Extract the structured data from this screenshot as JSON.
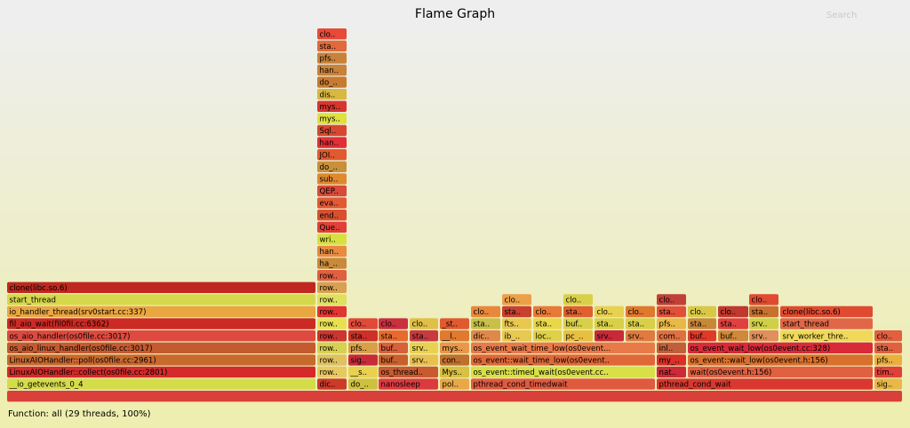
{
  "title": "Flame Graph",
  "search_label": "Search",
  "details": "Function: all (29 threads, 100%)",
  "background": {
    "top": "#eeeeee",
    "bottom": "#eeeeb0"
  },
  "frames": [
    {
      "label": "",
      "level": 0,
      "color": "#d9403a"
    },
    {
      "label": "__io_getevents_0_4",
      "level": 1,
      "color": "#d4dc4a"
    },
    {
      "label": "LinuxAIOHandler::collect(os0file.cc:2801)",
      "level": 2,
      "color": "#d42a2a"
    },
    {
      "label": "LinuxAIOHandler::poll(os0file.cc:2961)",
      "level": 3,
      "color": "#c8692e"
    },
    {
      "label": "os_aio_linux_handler(os0file.cc:3017)",
      "level": 4,
      "color": "#c45a30"
    },
    {
      "label": "os_aio_handler(os0file.cc:3017)",
      "level": 5,
      "color": "#de4a40"
    },
    {
      "label": "fil_aio_wait(fil0fil.cc:6362)",
      "level": 6,
      "color": "#cc2a24"
    },
    {
      "label": "io_handler_thread(srv0start.cc:337)",
      "level": 7,
      "color": "#eaa640"
    },
    {
      "label": "start_thread",
      "level": 8,
      "color": "#d6d84c"
    },
    {
      "label": "clone(libc.so.6)",
      "level": 9,
      "color": "#c0281f"
    },
    {
      "label": "dic..",
      "level": 1,
      "color": "#cc3a2a"
    },
    {
      "label": "row..",
      "level": 2,
      "color": "#e8c860"
    },
    {
      "label": "row..",
      "level": 3,
      "color": "#e0c060"
    },
    {
      "label": "row..",
      "level": 4,
      "color": "#d8d050"
    },
    {
      "label": "row..",
      "level": 5,
      "color": "#cc3530"
    },
    {
      "label": "row..",
      "level": 6,
      "color": "#e8e050"
    },
    {
      "label": "row..",
      "level": 7,
      "color": "#e03530"
    },
    {
      "label": "row..",
      "level": 8,
      "color": "#e0e060"
    },
    {
      "label": "row..",
      "level": 9,
      "color": "#d8a050"
    },
    {
      "label": "row..",
      "level": 10,
      "color": "#e06040"
    },
    {
      "label": "ha_..",
      "level": 11,
      "color": "#c88a3a"
    },
    {
      "label": "han..",
      "level": 12,
      "color": "#e88a40"
    },
    {
      "label": "wri..",
      "level": 13,
      "color": "#d8e040"
    },
    {
      "label": "Que..",
      "level": 14,
      "color": "#e04038"
    },
    {
      "label": "end..",
      "level": 15,
      "color": "#d8502e"
    },
    {
      "label": "eva..",
      "level": 16,
      "color": "#e05a35"
    },
    {
      "label": "QEP..",
      "level": 17,
      "color": "#d84a3a"
    },
    {
      "label": "sub..",
      "level": 18,
      "color": "#e0882e"
    },
    {
      "label": "do_..",
      "level": 19,
      "color": "#c8903a"
    },
    {
      "label": "JOI..",
      "level": 20,
      "color": "#e05a30"
    },
    {
      "label": "han..",
      "level": 21,
      "color": "#e03038"
    },
    {
      "label": "Sql..",
      "level": 22,
      "color": "#d84830"
    },
    {
      "label": "mys..",
      "level": 23,
      "color": "#e0e040"
    },
    {
      "label": "mys..",
      "level": 24,
      "color": "#d83530"
    },
    {
      "label": "dis..",
      "level": 25,
      "color": "#d8b840"
    },
    {
      "label": "do_..",
      "level": 26,
      "color": "#c87a30"
    },
    {
      "label": "han..",
      "level": 27,
      "color": "#c8823a"
    },
    {
      "label": "pfs..",
      "level": 28,
      "color": "#c8823a"
    },
    {
      "label": "sta..",
      "level": 29,
      "color": "#e06a3a"
    },
    {
      "label": "clo..",
      "level": 30,
      "color": "#e84a38"
    },
    {
      "label": "do_..",
      "level": 1,
      "color": "#d0c040"
    },
    {
      "label": "__s..",
      "level": 2,
      "color": "#e8d050"
    },
    {
      "label": "sig..",
      "level": 3,
      "color": "#c82a3a"
    },
    {
      "label": "pfs..",
      "level": 4,
      "color": "#d8a048"
    },
    {
      "label": "sta..",
      "level": 5,
      "color": "#cc3028"
    },
    {
      "label": "clo..",
      "level": 6,
      "color": "#e04a38"
    },
    {
      "label": "nanosleep",
      "level": 1,
      "color": "#dc3a40"
    },
    {
      "label": "os_thread..",
      "level": 2,
      "color": "#c85a30"
    },
    {
      "label": "buf..",
      "level": 3,
      "color": "#c8602e"
    },
    {
      "label": "buf..",
      "level": 4,
      "color": "#d8603a"
    },
    {
      "label": "sta..",
      "level": 5,
      "color": "#e86a30"
    },
    {
      "label": "clo..",
      "level": 6,
      "color": "#c83040"
    },
    {
      "label": "srv..",
      "level": 3,
      "color": "#e8c050"
    },
    {
      "label": "srv..",
      "level": 4,
      "color": "#e8d050"
    },
    {
      "label": "sta..",
      "level": 5,
      "color": "#c83a40"
    },
    {
      "label": "clo..",
      "level": 6,
      "color": "#e0c048"
    },
    {
      "label": "pol..",
      "level": 1,
      "color": "#e8a848"
    },
    {
      "label": "Mys..",
      "level": 2,
      "color": "#d8c040"
    },
    {
      "label": "con..",
      "level": 3,
      "color": "#c0702e"
    },
    {
      "label": "mys..",
      "level": 4,
      "color": "#e89848"
    },
    {
      "label": "__l..",
      "level": 5,
      "color": "#e07a30"
    },
    {
      "label": "_st..",
      "level": 6,
      "color": "#e05a30"
    },
    {
      "label": "pthread_cond_timedwait",
      "level": 1,
      "color": "#e05a40"
    },
    {
      "label": "os_event::timed_wait(os0event.cc..",
      "level": 2,
      "color": "#d8e048"
    },
    {
      "label": "os_event::wait_time_low(os0event..",
      "level": 3,
      "color": "#e06838"
    },
    {
      "label": "os_event_wait_time_low(os0event...",
      "level": 4,
      "color": "#e87a48"
    },
    {
      "label": "dic..",
      "level": 5,
      "color": "#e0884a"
    },
    {
      "label": "sta..",
      "level": 6,
      "color": "#c8c048"
    },
    {
      "label": "clo..",
      "level": 7,
      "color": "#e8883a"
    },
    {
      "label": "ib_..",
      "level": 5,
      "color": "#e8c850"
    },
    {
      "label": "fts..",
      "level": 6,
      "color": "#e8c850"
    },
    {
      "label": "sta..",
      "level": 7,
      "color": "#c8402e"
    },
    {
      "label": "clo..",
      "level": 8,
      "color": "#eca048"
    },
    {
      "label": "loc..",
      "level": 5,
      "color": "#e0d048"
    },
    {
      "label": "sta..",
      "level": 6,
      "color": "#e8d848"
    },
    {
      "label": "clo..",
      "level": 7,
      "color": "#e87a38"
    },
    {
      "label": "pc_..",
      "level": 5,
      "color": "#e8c040"
    },
    {
      "label": "buf..",
      "level": 6,
      "color": "#d8d048"
    },
    {
      "label": "sta..",
      "level": 7,
      "color": "#e0602e"
    },
    {
      "label": "clo..",
      "level": 8,
      "color": "#d8d048"
    },
    {
      "label": "srv..",
      "level": 5,
      "color": "#c82a38"
    },
    {
      "label": "sta..",
      "level": 6,
      "color": "#d8d048"
    },
    {
      "label": "clo..",
      "level": 7,
      "color": "#e8d050"
    },
    {
      "label": "srv..",
      "level": 5,
      "color": "#e07a40"
    },
    {
      "label": "sta..",
      "level": 6,
      "color": "#d8d048"
    },
    {
      "label": "clo..",
      "level": 7,
      "color": "#e0782e"
    },
    {
      "label": "pthread_cond_wait",
      "level": 1,
      "color": "#d83830"
    },
    {
      "label": "nat..",
      "level": 2,
      "color": "#cc2a38"
    },
    {
      "label": "my_..",
      "level": 3,
      "color": "#d83028"
    },
    {
      "label": "inl..",
      "level": 4,
      "color": "#c0603a"
    },
    {
      "label": "com..",
      "level": 5,
      "color": "#e07040"
    },
    {
      "label": "pfs..",
      "level": 6,
      "color": "#e8b848"
    },
    {
      "label": "sta..",
      "level": 7,
      "color": "#e05038"
    },
    {
      "label": "clo..",
      "level": 8,
      "color": "#c04038"
    },
    {
      "label": "wait(os0event.h:156)",
      "level": 2,
      "color": "#e06040"
    },
    {
      "label": "os_event::wait_low(os0event.h:156)",
      "level": 3,
      "color": "#d8702e"
    },
    {
      "label": "os_event_wait_low(os0event.cc:328)",
      "level": 4,
      "color": "#d82a38"
    },
    {
      "label": "buf..",
      "level": 5,
      "color": "#e03a2a"
    },
    {
      "label": "sta..",
      "level": 6,
      "color": "#c8883a"
    },
    {
      "label": "clo..",
      "level": 7,
      "color": "#d8c848"
    },
    {
      "label": "buf..",
      "level": 5,
      "color": "#d0883a"
    },
    {
      "label": "sta..",
      "level": 6,
      "color": "#e04040"
    },
    {
      "label": "clo..",
      "level": 7,
      "color": "#c0382e"
    },
    {
      "label": "srv..",
      "level": 5,
      "color": "#e0905a"
    },
    {
      "label": "srv..",
      "level": 6,
      "color": "#d0d048"
    },
    {
      "label": "sta..",
      "level": 7,
      "color": "#c8702e"
    },
    {
      "label": "clo..",
      "level": 8,
      "color": "#e04a30"
    },
    {
      "label": "srv_worker_thre..",
      "level": 5,
      "color": "#f0d858"
    },
    {
      "label": "start_thread",
      "level": 6,
      "color": "#e06848"
    },
    {
      "label": "clone(libc.so.6)",
      "level": 7,
      "color": "#e04a30"
    },
    {
      "label": "sig..",
      "level": 1,
      "color": "#e8b848"
    },
    {
      "label": "tim..",
      "level": 2,
      "color": "#e04038"
    },
    {
      "label": "pfs..",
      "level": 3,
      "color": "#e8b040"
    },
    {
      "label": "sta..",
      "level": 4,
      "color": "#e06040"
    },
    {
      "label": "clo..",
      "level": 5,
      "color": "#e06040"
    }
  ]
}
